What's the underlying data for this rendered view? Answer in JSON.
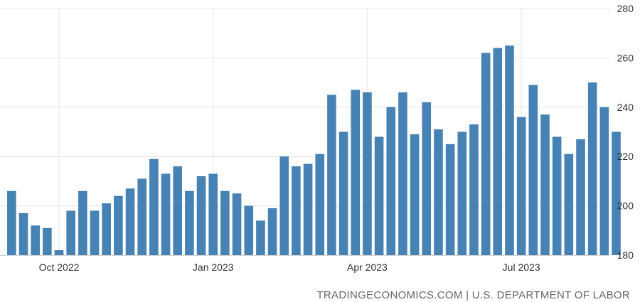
{
  "chart_data": {
    "type": "bar",
    "x_tick_labels": [
      "Oct 2022",
      "Jan 2023",
      "Apr 2023",
      "Jul 2023"
    ],
    "y_ticks": [
      180,
      200,
      220,
      240,
      260,
      280
    ],
    "ylim": [
      180,
      280
    ],
    "grid": true,
    "values": [
      206,
      197,
      192,
      191,
      182,
      198,
      206,
      198,
      201,
      204,
      207,
      211,
      219,
      213,
      216,
      206,
      212,
      213,
      206,
      205,
      200,
      194,
      199,
      220,
      216,
      217,
      221,
      245,
      230,
      247,
      246,
      228,
      240,
      246,
      229,
      242,
      231,
      225,
      230,
      233,
      262,
      264,
      265,
      236,
      249,
      237,
      228,
      221,
      227,
      250,
      240,
      230
    ],
    "tick_positions": [
      4.5,
      17.5,
      30.5,
      43.5
    ],
    "bar_color": "#4682b4"
  },
  "footer": {
    "source": "TRADINGECONOMICS.COM | U.S. DEPARTMENT OF LABOR"
  }
}
